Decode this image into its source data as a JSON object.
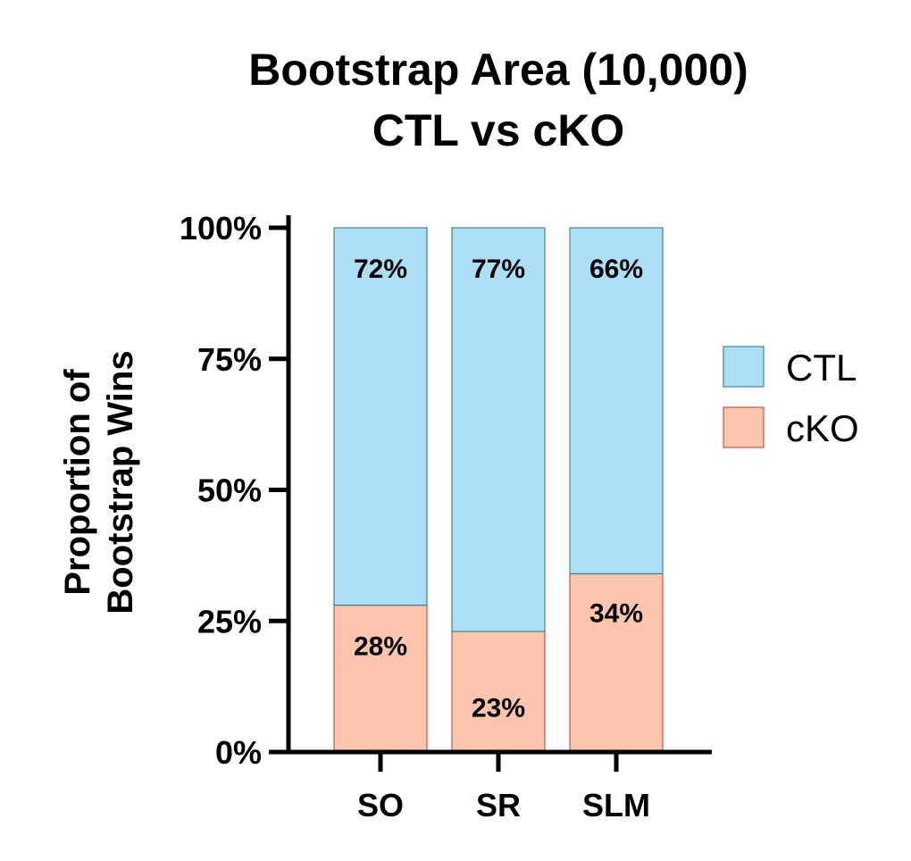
{
  "chart_data": {
    "type": "bar",
    "stacked": true,
    "title": [
      "Bootstrap Area (10,000)",
      "CTL vs cKO"
    ],
    "ylabel": [
      "Proportion of",
      "Bootstrap Wins"
    ],
    "xlabel": "",
    "categories": [
      "SO",
      "SR",
      "SLM"
    ],
    "yticks": [
      "0%",
      "25%",
      "50%",
      "75%",
      "100%"
    ],
    "ytick_values": [
      0,
      25,
      50,
      75,
      100
    ],
    "ylim": [
      0,
      100
    ],
    "grid": false,
    "legend_position": "right",
    "series": [
      {
        "name": "cKO",
        "values": [
          28,
          23,
          34
        ],
        "labels": [
          "28%",
          "23%",
          "34%"
        ],
        "color": "#fcc5ad",
        "edge": "#c0392b"
      },
      {
        "name": "CTL",
        "values": [
          72,
          77,
          66
        ],
        "labels": [
          "72%",
          "77%",
          "66%"
        ],
        "color": "#acdef5",
        "edge": "#2b6f8a"
      }
    ],
    "legend_order": [
      "CTL",
      "cKO"
    ]
  }
}
